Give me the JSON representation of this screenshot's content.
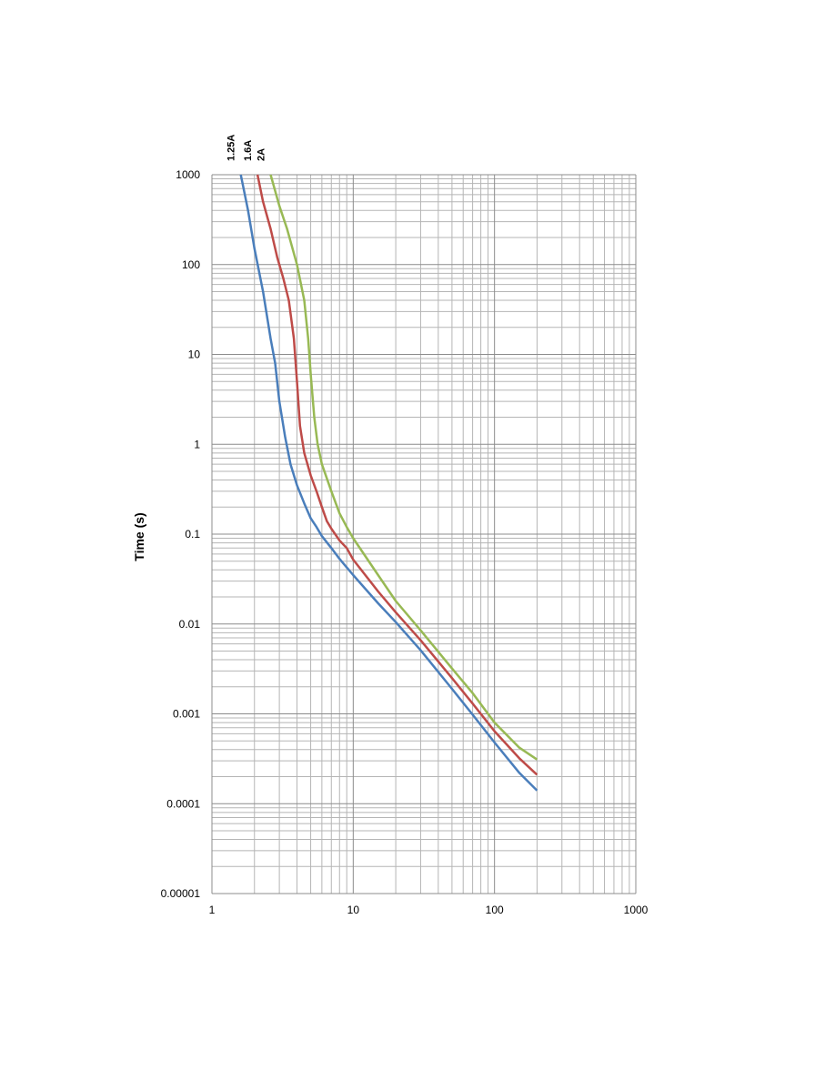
{
  "chart_data": {
    "type": "line",
    "title": "",
    "xlabel": "",
    "ylabel": "Time (s)",
    "x_scale": "log",
    "y_scale": "log",
    "xlim": [
      1,
      1000
    ],
    "ylim": [
      1e-05,
      1000
    ],
    "grid": true,
    "x_ticks": [
      "1",
      "10",
      "100",
      "1000"
    ],
    "y_ticks": [
      "1000",
      "100",
      "10",
      "1",
      "0.1",
      "0.01",
      "0.001",
      "0.0001",
      "0.00001"
    ],
    "series": [
      {
        "name": "1.25A",
        "color": "#4a7ebb",
        "points": [
          [
            1.6,
            1000
          ],
          [
            1.8,
            400
          ],
          [
            2,
            150
          ],
          [
            2.3,
            50
          ],
          [
            2.6,
            15
          ],
          [
            2.8,
            8
          ],
          [
            3,
            3
          ],
          [
            3.3,
            1.2
          ],
          [
            3.6,
            0.6
          ],
          [
            4,
            0.35
          ],
          [
            4.5,
            0.22
          ],
          [
            5,
            0.15
          ],
          [
            5.5,
            0.12
          ],
          [
            6,
            0.095
          ],
          [
            7,
            0.07
          ],
          [
            8,
            0.053
          ],
          [
            10,
            0.035
          ],
          [
            15,
            0.017
          ],
          [
            20,
            0.0105
          ],
          [
            30,
            0.0051
          ],
          [
            50,
            0.0019
          ],
          [
            70,
            0.00098
          ],
          [
            100,
            0.00048
          ],
          [
            150,
            0.00022
          ],
          [
            200,
            0.00014
          ]
        ]
      },
      {
        "name": "1.6A",
        "color": "#be4b48",
        "points": [
          [
            2.1,
            1000
          ],
          [
            2.3,
            500
          ],
          [
            2.6,
            250
          ],
          [
            2.9,
            120
          ],
          [
            3.2,
            70
          ],
          [
            3.5,
            40
          ],
          [
            3.8,
            15
          ],
          [
            4,
            5
          ],
          [
            4.2,
            1.6
          ],
          [
            4.5,
            0.8
          ],
          [
            5,
            0.45
          ],
          [
            5.5,
            0.3
          ],
          [
            6,
            0.2
          ],
          [
            6.5,
            0.14
          ],
          [
            7,
            0.115
          ],
          [
            8,
            0.085
          ],
          [
            9,
            0.07
          ],
          [
            10,
            0.052
          ],
          [
            15,
            0.023
          ],
          [
            20,
            0.0135
          ],
          [
            30,
            0.0066
          ],
          [
            50,
            0.0025
          ],
          [
            70,
            0.0013
          ],
          [
            100,
            0.00064
          ],
          [
            150,
            0.00032
          ],
          [
            200,
            0.00021
          ]
        ]
      },
      {
        "name": "2A",
        "color": "#98b954",
        "points": [
          [
            2.6,
            1000
          ],
          [
            3,
            450
          ],
          [
            3.4,
            250
          ],
          [
            4,
            100
          ],
          [
            4.5,
            40
          ],
          [
            4.8,
            15
          ],
          [
            5,
            6
          ],
          [
            5.3,
            2
          ],
          [
            5.6,
            1
          ],
          [
            6,
            0.6
          ],
          [
            7,
            0.3
          ],
          [
            8,
            0.17
          ],
          [
            9,
            0.12
          ],
          [
            10,
            0.09
          ],
          [
            15,
            0.035
          ],
          [
            20,
            0.018
          ],
          [
            30,
            0.0085
          ],
          [
            50,
            0.0032
          ],
          [
            70,
            0.0017
          ],
          [
            100,
            0.0008
          ],
          [
            150,
            0.00042
          ],
          [
            200,
            0.00031
          ]
        ]
      }
    ]
  }
}
